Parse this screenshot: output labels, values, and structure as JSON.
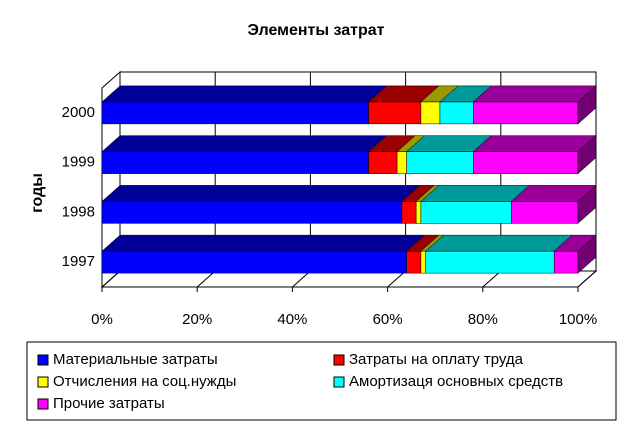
{
  "chart_data": {
    "type": "bar3d_stacked_percent_horizontal",
    "title": "Элементы затрат",
    "y_label": "годы",
    "categories": [
      "1997",
      "1998",
      "1999",
      "2000"
    ],
    "series": [
      {
        "name": "Материальные затраты",
        "color": "#0000ff",
        "values": [
          64,
          63,
          56,
          56
        ]
      },
      {
        "name": "Затраты на оплату труда",
        "color": "#ff0000",
        "values": [
          3,
          3,
          6,
          11
        ]
      },
      {
        "name": "Отчисления на соц.нужды",
        "color": "#ffff00",
        "values": [
          1,
          1,
          2,
          4
        ]
      },
      {
        "name": "Амортизаця основных средств",
        "color": "#00ffff",
        "values": [
          27,
          19,
          14,
          7
        ]
      },
      {
        "name": "Прочие затраты",
        "color": "#ff00ff",
        "values": [
          5,
          14,
          22,
          22
        ]
      }
    ],
    "xlim": [
      0,
      100
    ],
    "xticks": [
      {
        "value": 0,
        "label": "0%"
      },
      {
        "value": 20,
        "label": "20%"
      },
      {
        "value": 40,
        "label": "40%"
      },
      {
        "value": 60,
        "label": "60%"
      },
      {
        "value": 80,
        "label": "80%"
      },
      {
        "value": 100,
        "label": "100%"
      }
    ],
    "grid": true,
    "legend": "bottom"
  }
}
